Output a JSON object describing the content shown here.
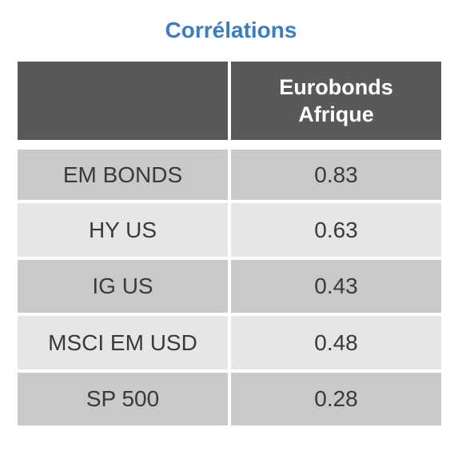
{
  "title": "Corrélations",
  "table": {
    "header": "Eurobonds Afrique",
    "rows": [
      [
        "EM BONDS",
        0.83
      ],
      [
        "HY US",
        0.63
      ],
      [
        "IG US",
        0.43
      ],
      [
        "MSCI EM USD",
        0.48
      ],
      [
        "SP 500",
        0.28
      ]
    ]
  }
}
